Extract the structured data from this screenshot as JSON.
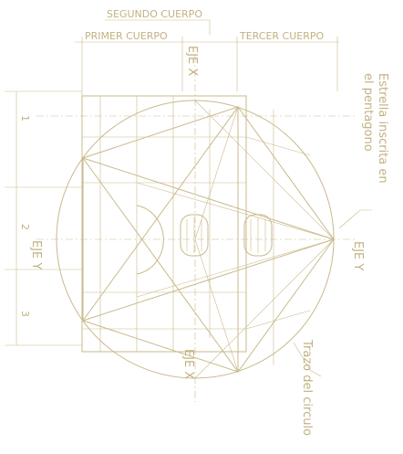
{
  "header": {
    "segundo": "SEGUNDO CUERPO",
    "primer": "PRIMER CUERPO",
    "tercer": "TERCER CUERPO"
  },
  "axes": {
    "eje_x_top": "EJE X",
    "eje_x_bottom": "EJE X",
    "eje_y_left": "EJE Y",
    "eje_y_right": "EJE Y"
  },
  "notes": {
    "estrella_1": "Estrella inscrita en",
    "estrella_2": "el pentagono",
    "trazo": "Trazo del circulo"
  },
  "bays": [
    "1",
    "2",
    "3"
  ]
}
